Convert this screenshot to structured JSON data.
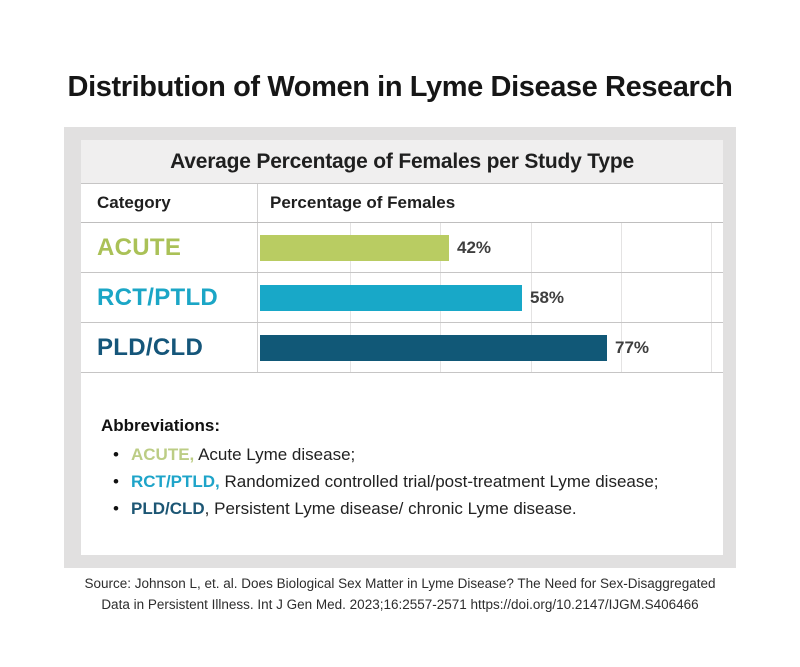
{
  "page": {
    "title": "Distribution of Women in Lyme Disease Research"
  },
  "chart": {
    "header": "Average Percentage of Females per Study Type",
    "columns": {
      "category": "Category",
      "value": "Percentage of Females"
    }
  },
  "chart_data": {
    "type": "bar",
    "orientation": "horizontal",
    "title": "Average Percentage of Females per Study Type",
    "categories": [
      "ACUTE",
      "RCT/PTLD",
      "PLD/CLD"
    ],
    "values": [
      42,
      58,
      77
    ],
    "value_labels": [
      "42%",
      "58%",
      "77%"
    ],
    "bar_colors": [
      "#b9cc62",
      "#18a8c8",
      "#115877"
    ],
    "label_colors": [
      "#aac157",
      "#1ba6c6",
      "#15567a"
    ],
    "xlabel": "Percentage of Females",
    "ylabel": "Category",
    "xlim": [
      0,
      100
    ],
    "gridline_interval_percent": 20,
    "grid": true,
    "legend": false
  },
  "abbreviations": {
    "heading": "Abbreviations:",
    "items": [
      {
        "term": "ACUTE,",
        "definition": " Acute Lyme disease;",
        "color": "#bccd85"
      },
      {
        "term": "RCT/PTLD,",
        "definition": " Randomized controlled trial/post-treatment Lyme disease;",
        "color": "#1ea4c9"
      },
      {
        "term": "PLD/CLD",
        "definition": ", Persistent Lyme disease/ chronic Lyme disease.",
        "color": "#1c5674"
      }
    ]
  },
  "source": {
    "line1": "Source: Johnson L, et. al. Does Biological Sex Matter in Lyme Disease? The Need for Sex-Disaggregated",
    "line2": "Data in Persistent Illness. Int J Gen Med. 2023;16:2557-2571 https://doi.org/10.2147/IJGM.S406466"
  }
}
